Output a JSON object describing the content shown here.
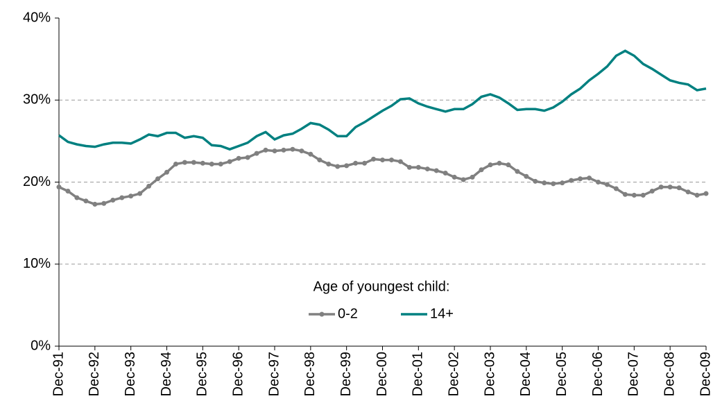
{
  "chart_data": {
    "type": "line",
    "categories": [
      "Dec-91",
      null,
      null,
      null,
      "Dec-92",
      null,
      null,
      null,
      "Dec-93",
      null,
      null,
      null,
      "Dec-94",
      null,
      null,
      null,
      "Dec-95",
      null,
      null,
      null,
      "Dec-96",
      null,
      null,
      null,
      "Dec-97",
      null,
      null,
      null,
      "Dec-98",
      null,
      null,
      null,
      "Dec-99",
      null,
      null,
      null,
      "Dec-00",
      null,
      null,
      null,
      "Dec-01",
      null,
      null,
      null,
      "Dec-02",
      null,
      null,
      null,
      "Dec-03",
      null,
      null,
      null,
      "Dec-04",
      null,
      null,
      null,
      "Dec-05",
      null,
      null,
      null,
      "Dec-06",
      null,
      null,
      null,
      "Dec-07",
      null,
      null,
      null,
      "Dec-08",
      null,
      null,
      null,
      "Dec-09"
    ],
    "series": [
      {
        "name": "0-2",
        "color": "#808080",
        "marker": true,
        "values": [
          19.4,
          18.9,
          18.1,
          17.7,
          17.3,
          17.4,
          17.8,
          18.1,
          18.3,
          18.6,
          19.5,
          20.4,
          21.2,
          22.2,
          22.4,
          22.4,
          22.3,
          22.2,
          22.2,
          22.5,
          22.9,
          23.0,
          23.5,
          23.9,
          23.8,
          23.9,
          24.0,
          23.8,
          23.4,
          22.7,
          22.2,
          21.9,
          22.0,
          22.3,
          22.3,
          22.8,
          22.7,
          22.7,
          22.5,
          21.8,
          21.8,
          21.6,
          21.4,
          21.1,
          20.6,
          20.3,
          20.6,
          21.5,
          22.1,
          22.3,
          22.1,
          21.3,
          20.7,
          20.1,
          19.9,
          19.8,
          19.9,
          20.2,
          20.4,
          20.5,
          20.0,
          19.7,
          19.2,
          18.5,
          18.4,
          18.4,
          18.9,
          19.4,
          19.4,
          19.3,
          18.8,
          18.4,
          18.6
        ]
      },
      {
        "name": "14+",
        "color": "#008080",
        "marker": false,
        "values": [
          25.7,
          24.9,
          24.6,
          24.4,
          24.3,
          24.6,
          24.8,
          24.8,
          24.7,
          25.2,
          25.8,
          25.6,
          26.0,
          26.0,
          25.4,
          25.6,
          25.4,
          24.5,
          24.4,
          24.0,
          24.4,
          24.8,
          25.6,
          26.1,
          25.2,
          25.7,
          25.9,
          26.5,
          27.2,
          27.0,
          26.4,
          25.6,
          25.6,
          26.7,
          27.3,
          28.0,
          28.7,
          29.3,
          30.1,
          30.2,
          29.6,
          29.2,
          28.9,
          28.6,
          28.9,
          28.9,
          29.5,
          30.4,
          30.7,
          30.3,
          29.6,
          28.8,
          28.9,
          28.9,
          28.7,
          29.1,
          29.8,
          30.7,
          31.4,
          32.4,
          33.2,
          34.1,
          35.4,
          36.0,
          35.4,
          34.4,
          33.8,
          33.1,
          32.4,
          32.1,
          31.9,
          31.2,
          31.4
        ]
      }
    ],
    "legend_title": "Age of youngest child:",
    "ylim": [
      0,
      40
    ],
    "yticks": [
      {
        "value": 0,
        "label": "0%"
      },
      {
        "value": 10,
        "label": "10%"
      },
      {
        "value": 20,
        "label": "20%"
      },
      {
        "value": 30,
        "label": "30%"
      },
      {
        "value": 40,
        "label": "40%"
      }
    ],
    "grid": true
  }
}
